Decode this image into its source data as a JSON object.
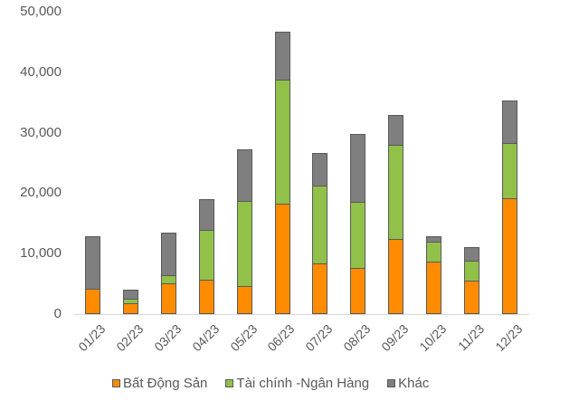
{
  "chart_data": {
    "type": "bar",
    "stacked": true,
    "title": "",
    "xlabel": "",
    "ylabel": "",
    "ylim": [
      0,
      50000
    ],
    "yticks": [
      0,
      10000,
      20000,
      30000,
      40000,
      50000
    ],
    "ytick_labels": [
      "0",
      "10,000",
      "20,000",
      "30,000",
      "40,000",
      "50,000"
    ],
    "grid": false,
    "legend_position": "bottom",
    "categories": [
      "01/23",
      "02/23",
      "03/23",
      "04/23",
      "05/23",
      "06/23",
      "07/23",
      "08/23",
      "09/23",
      "10/23",
      "11/23",
      "12/23"
    ],
    "series": [
      {
        "name": "Bất Động Sản",
        "color": "#ff8c00",
        "values": [
          4200,
          1800,
          5100,
          5700,
          4600,
          18200,
          8400,
          7600,
          12400,
          8700,
          5500,
          19200
        ]
      },
      {
        "name": "Tài chính -Ngân Hàng",
        "color": "#92c14a",
        "values": [
          0,
          750,
          1350,
          8200,
          14100,
          20600,
          12800,
          11000,
          15600,
          3300,
          3300,
          9100
        ]
      },
      {
        "name": "Khác",
        "color": "#7f7f7f",
        "values": [
          8700,
          1550,
          6950,
          5100,
          8600,
          7900,
          5400,
          11200,
          4900,
          900,
          2300,
          7000
        ]
      }
    ],
    "totals": [
      12900,
      4100,
      13400,
      19000,
      27300,
      46700,
      26600,
      29800,
      32900,
      12900,
      11100,
      35300
    ]
  },
  "legend": {
    "items": [
      {
        "label": "Bất Động Sản",
        "color": "#ff8c00"
      },
      {
        "label": "Tài chính -Ngân Hàng",
        "color": "#92c14a"
      },
      {
        "label": "Khác",
        "color": "#7f7f7f"
      }
    ]
  }
}
